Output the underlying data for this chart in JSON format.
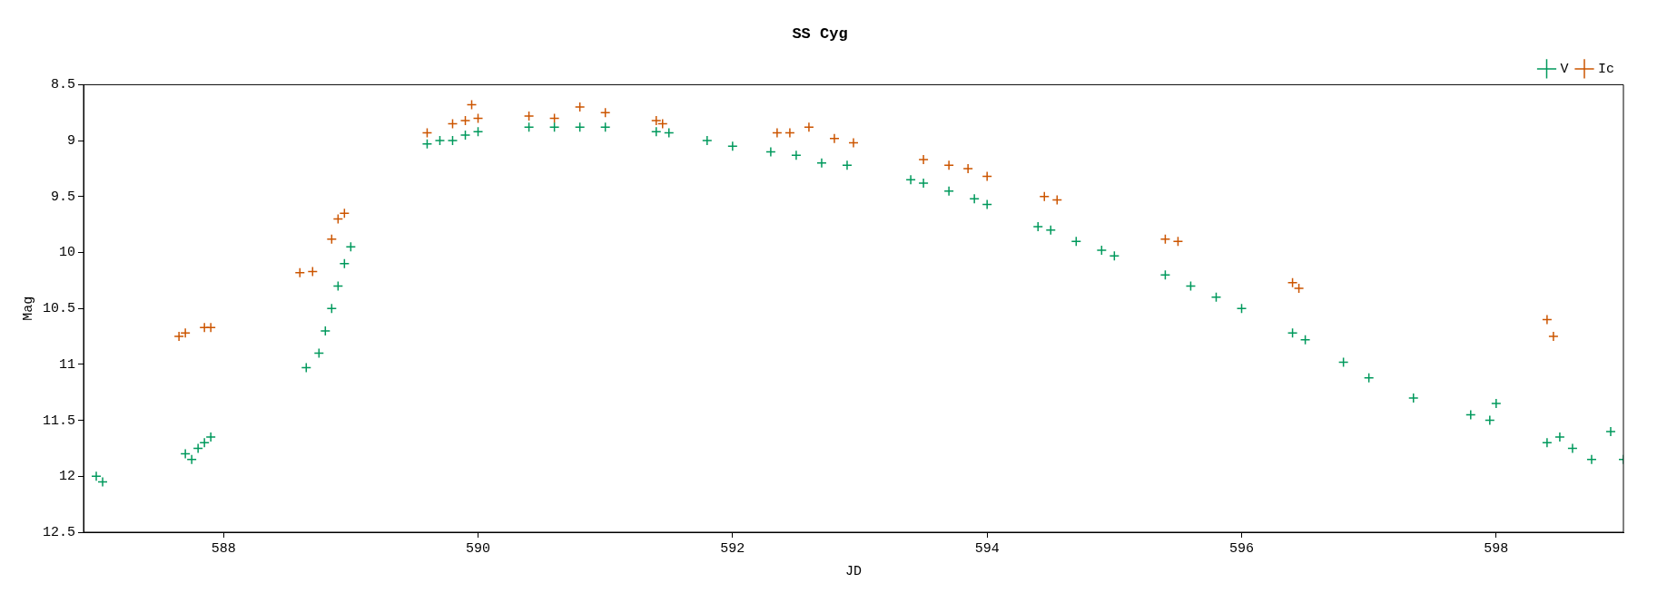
{
  "chart_data": {
    "type": "scatter",
    "title": "SS Cyg",
    "xlabel": "JD",
    "ylabel": "Mag",
    "xlim": [
      586.9,
      599
    ],
    "xticks": [
      588,
      590,
      592,
      594,
      596,
      598
    ],
    "ylim": [
      12.5,
      8.5
    ],
    "yticks": [
      8.5,
      9,
      9.5,
      10,
      10.5,
      11,
      11.5,
      12,
      12.5
    ],
    "grid": false,
    "legend": "top right",
    "marker": "cross",
    "series": [
      {
        "name": "V",
        "color": "#00995c",
        "x": [
          587.0,
          587.05,
          587.7,
          587.75,
          587.8,
          587.85,
          587.9,
          588.65,
          588.75,
          588.8,
          588.85,
          588.9,
          588.95,
          589.0,
          589.6,
          589.7,
          589.8,
          589.9,
          590.0,
          590.4,
          590.6,
          590.8,
          591.0,
          591.4,
          591.5,
          591.8,
          592.0,
          592.3,
          592.5,
          592.7,
          592.9,
          593.4,
          593.5,
          593.7,
          593.9,
          594.0,
          594.4,
          594.5,
          594.7,
          594.9,
          595.0,
          595.4,
          595.6,
          595.8,
          596.0,
          596.4,
          596.5,
          596.8,
          597.0,
          597.35,
          597.8,
          597.95,
          598.0,
          598.4,
          598.5,
          598.6,
          598.75,
          598.9,
          599.0
        ],
        "values": [
          12.0,
          12.05,
          11.8,
          11.85,
          11.75,
          11.7,
          11.65,
          11.03,
          10.9,
          10.7,
          10.5,
          10.3,
          10.1,
          9.95,
          9.03,
          9.0,
          9.0,
          8.95,
          8.92,
          8.88,
          8.88,
          8.88,
          8.88,
          8.92,
          8.93,
          9.0,
          9.05,
          9.1,
          9.13,
          9.2,
          9.22,
          9.35,
          9.38,
          9.45,
          9.52,
          9.57,
          9.77,
          9.8,
          9.9,
          9.98,
          10.03,
          10.2,
          10.3,
          10.4,
          10.5,
          10.72,
          10.78,
          10.98,
          11.12,
          11.3,
          11.45,
          11.5,
          11.35,
          11.7,
          11.65,
          11.75,
          11.85,
          11.6,
          11.85
        ]
      },
      {
        "name": "Ic",
        "color": "#cc5500",
        "x": [
          587.65,
          587.7,
          587.85,
          587.9,
          588.6,
          588.7,
          588.85,
          588.9,
          588.95,
          589.6,
          589.8,
          589.9,
          589.95,
          590.0,
          590.4,
          590.6,
          590.8,
          591.0,
          591.4,
          591.45,
          592.35,
          592.45,
          592.6,
          592.8,
          592.95,
          593.5,
          593.7,
          593.85,
          594.0,
          594.45,
          594.55,
          595.4,
          595.5,
          596.4,
          596.45,
          598.4,
          598.45
        ],
        "values": [
          10.75,
          10.72,
          10.67,
          10.67,
          10.18,
          10.17,
          9.88,
          9.7,
          9.65,
          8.93,
          8.85,
          8.82,
          8.68,
          8.8,
          8.78,
          8.8,
          8.7,
          8.75,
          8.82,
          8.85,
          8.93,
          8.93,
          8.88,
          8.98,
          9.02,
          9.17,
          9.22,
          9.25,
          9.32,
          9.5,
          9.53,
          9.88,
          9.9,
          10.27,
          10.32,
          10.6,
          10.75
        ]
      }
    ]
  }
}
